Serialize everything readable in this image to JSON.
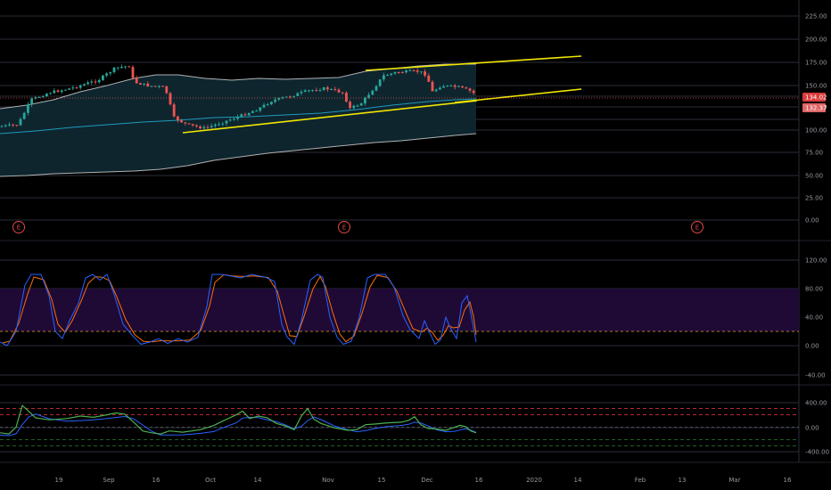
{
  "main_axis": {
    "labels": [
      "225.00",
      "200.00",
      "175.00",
      "150.00",
      "125.00",
      "100.00",
      "75.00",
      "50.00",
      "25.00",
      "0.00"
    ]
  },
  "price_tags": [
    {
      "value": "134.02",
      "color": "#d93a3a"
    },
    {
      "value": "132.37",
      "color": "#e06565"
    }
  ],
  "earnings": [
    {
      "label": "E"
    },
    {
      "label": "E"
    },
    {
      "label": "E"
    }
  ],
  "stoch_axis": {
    "labels": [
      "120.00",
      "80.00",
      "40.00",
      "0.00",
      "-40.00"
    ]
  },
  "osc_axis": {
    "labels": [
      "400.00",
      "0.00",
      "-400.00"
    ]
  },
  "time_axis": {
    "labels": [
      "19",
      "Sep",
      "16",
      "Oct",
      "14",
      "Nov",
      "15",
      "Dec",
      "16",
      "2020",
      "14",
      "Feb",
      "13",
      "Mar",
      "16"
    ]
  },
  "colors": {
    "band_fill": "#0f2730",
    "band_line": "#d9d9d9",
    "ma_line": "#1e9bbd",
    "trend_line": "#f2e600",
    "candle_up": "#26a69a",
    "candle_down": "#ef5350",
    "stoch_bg": "#1f0a36",
    "stoch_k": "#2962ff",
    "stoch_d": "#ff6d00",
    "osc_green": "#4caf50",
    "osc_blue": "#2962ff",
    "level_red": "#f23645",
    "level_green": "#2e7d32"
  }
}
